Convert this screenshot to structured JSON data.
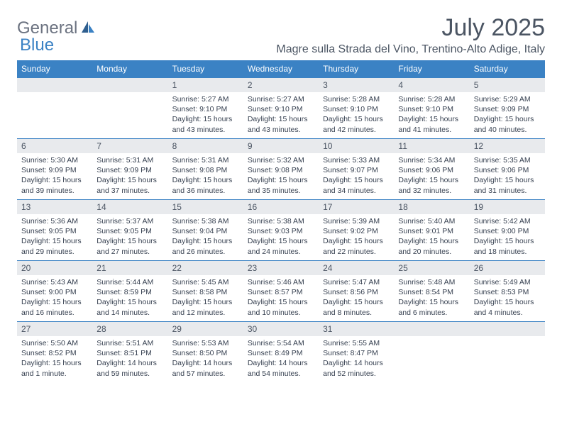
{
  "logo": {
    "text1": "General",
    "text2": "Blue"
  },
  "title": "July 2025",
  "location": "Magre sulla Strada del Vino, Trentino-Alto Adige, Italy",
  "dayHeaders": [
    "Sunday",
    "Monday",
    "Tuesday",
    "Wednesday",
    "Thursday",
    "Friday",
    "Saturday"
  ],
  "colors": {
    "headerBg": "#3b82c4",
    "dayNumBg": "#e8eaed",
    "text": "#4b5563",
    "border": "#3b82c4"
  },
  "weeks": [
    [
      null,
      null,
      {
        "n": "1",
        "sr": "Sunrise: 5:27 AM",
        "ss": "Sunset: 9:10 PM",
        "d1": "Daylight: 15 hours",
        "d2": "and 43 minutes."
      },
      {
        "n": "2",
        "sr": "Sunrise: 5:27 AM",
        "ss": "Sunset: 9:10 PM",
        "d1": "Daylight: 15 hours",
        "d2": "and 43 minutes."
      },
      {
        "n": "3",
        "sr": "Sunrise: 5:28 AM",
        "ss": "Sunset: 9:10 PM",
        "d1": "Daylight: 15 hours",
        "d2": "and 42 minutes."
      },
      {
        "n": "4",
        "sr": "Sunrise: 5:28 AM",
        "ss": "Sunset: 9:10 PM",
        "d1": "Daylight: 15 hours",
        "d2": "and 41 minutes."
      },
      {
        "n": "5",
        "sr": "Sunrise: 5:29 AM",
        "ss": "Sunset: 9:09 PM",
        "d1": "Daylight: 15 hours",
        "d2": "and 40 minutes."
      }
    ],
    [
      {
        "n": "6",
        "sr": "Sunrise: 5:30 AM",
        "ss": "Sunset: 9:09 PM",
        "d1": "Daylight: 15 hours",
        "d2": "and 39 minutes."
      },
      {
        "n": "7",
        "sr": "Sunrise: 5:31 AM",
        "ss": "Sunset: 9:09 PM",
        "d1": "Daylight: 15 hours",
        "d2": "and 37 minutes."
      },
      {
        "n": "8",
        "sr": "Sunrise: 5:31 AM",
        "ss": "Sunset: 9:08 PM",
        "d1": "Daylight: 15 hours",
        "d2": "and 36 minutes."
      },
      {
        "n": "9",
        "sr": "Sunrise: 5:32 AM",
        "ss": "Sunset: 9:08 PM",
        "d1": "Daylight: 15 hours",
        "d2": "and 35 minutes."
      },
      {
        "n": "10",
        "sr": "Sunrise: 5:33 AM",
        "ss": "Sunset: 9:07 PM",
        "d1": "Daylight: 15 hours",
        "d2": "and 34 minutes."
      },
      {
        "n": "11",
        "sr": "Sunrise: 5:34 AM",
        "ss": "Sunset: 9:06 PM",
        "d1": "Daylight: 15 hours",
        "d2": "and 32 minutes."
      },
      {
        "n": "12",
        "sr": "Sunrise: 5:35 AM",
        "ss": "Sunset: 9:06 PM",
        "d1": "Daylight: 15 hours",
        "d2": "and 31 minutes."
      }
    ],
    [
      {
        "n": "13",
        "sr": "Sunrise: 5:36 AM",
        "ss": "Sunset: 9:05 PM",
        "d1": "Daylight: 15 hours",
        "d2": "and 29 minutes."
      },
      {
        "n": "14",
        "sr": "Sunrise: 5:37 AM",
        "ss": "Sunset: 9:05 PM",
        "d1": "Daylight: 15 hours",
        "d2": "and 27 minutes."
      },
      {
        "n": "15",
        "sr": "Sunrise: 5:38 AM",
        "ss": "Sunset: 9:04 PM",
        "d1": "Daylight: 15 hours",
        "d2": "and 26 minutes."
      },
      {
        "n": "16",
        "sr": "Sunrise: 5:38 AM",
        "ss": "Sunset: 9:03 PM",
        "d1": "Daylight: 15 hours",
        "d2": "and 24 minutes."
      },
      {
        "n": "17",
        "sr": "Sunrise: 5:39 AM",
        "ss": "Sunset: 9:02 PM",
        "d1": "Daylight: 15 hours",
        "d2": "and 22 minutes."
      },
      {
        "n": "18",
        "sr": "Sunrise: 5:40 AM",
        "ss": "Sunset: 9:01 PM",
        "d1": "Daylight: 15 hours",
        "d2": "and 20 minutes."
      },
      {
        "n": "19",
        "sr": "Sunrise: 5:42 AM",
        "ss": "Sunset: 9:00 PM",
        "d1": "Daylight: 15 hours",
        "d2": "and 18 minutes."
      }
    ],
    [
      {
        "n": "20",
        "sr": "Sunrise: 5:43 AM",
        "ss": "Sunset: 9:00 PM",
        "d1": "Daylight: 15 hours",
        "d2": "and 16 minutes."
      },
      {
        "n": "21",
        "sr": "Sunrise: 5:44 AM",
        "ss": "Sunset: 8:59 PM",
        "d1": "Daylight: 15 hours",
        "d2": "and 14 minutes."
      },
      {
        "n": "22",
        "sr": "Sunrise: 5:45 AM",
        "ss": "Sunset: 8:58 PM",
        "d1": "Daylight: 15 hours",
        "d2": "and 12 minutes."
      },
      {
        "n": "23",
        "sr": "Sunrise: 5:46 AM",
        "ss": "Sunset: 8:57 PM",
        "d1": "Daylight: 15 hours",
        "d2": "and 10 minutes."
      },
      {
        "n": "24",
        "sr": "Sunrise: 5:47 AM",
        "ss": "Sunset: 8:56 PM",
        "d1": "Daylight: 15 hours",
        "d2": "and 8 minutes."
      },
      {
        "n": "25",
        "sr": "Sunrise: 5:48 AM",
        "ss": "Sunset: 8:54 PM",
        "d1": "Daylight: 15 hours",
        "d2": "and 6 minutes."
      },
      {
        "n": "26",
        "sr": "Sunrise: 5:49 AM",
        "ss": "Sunset: 8:53 PM",
        "d1": "Daylight: 15 hours",
        "d2": "and 4 minutes."
      }
    ],
    [
      {
        "n": "27",
        "sr": "Sunrise: 5:50 AM",
        "ss": "Sunset: 8:52 PM",
        "d1": "Daylight: 15 hours",
        "d2": "and 1 minute."
      },
      {
        "n": "28",
        "sr": "Sunrise: 5:51 AM",
        "ss": "Sunset: 8:51 PM",
        "d1": "Daylight: 14 hours",
        "d2": "and 59 minutes."
      },
      {
        "n": "29",
        "sr": "Sunrise: 5:53 AM",
        "ss": "Sunset: 8:50 PM",
        "d1": "Daylight: 14 hours",
        "d2": "and 57 minutes."
      },
      {
        "n": "30",
        "sr": "Sunrise: 5:54 AM",
        "ss": "Sunset: 8:49 PM",
        "d1": "Daylight: 14 hours",
        "d2": "and 54 minutes."
      },
      {
        "n": "31",
        "sr": "Sunrise: 5:55 AM",
        "ss": "Sunset: 8:47 PM",
        "d1": "Daylight: 14 hours",
        "d2": "and 52 minutes."
      },
      null,
      null
    ]
  ]
}
